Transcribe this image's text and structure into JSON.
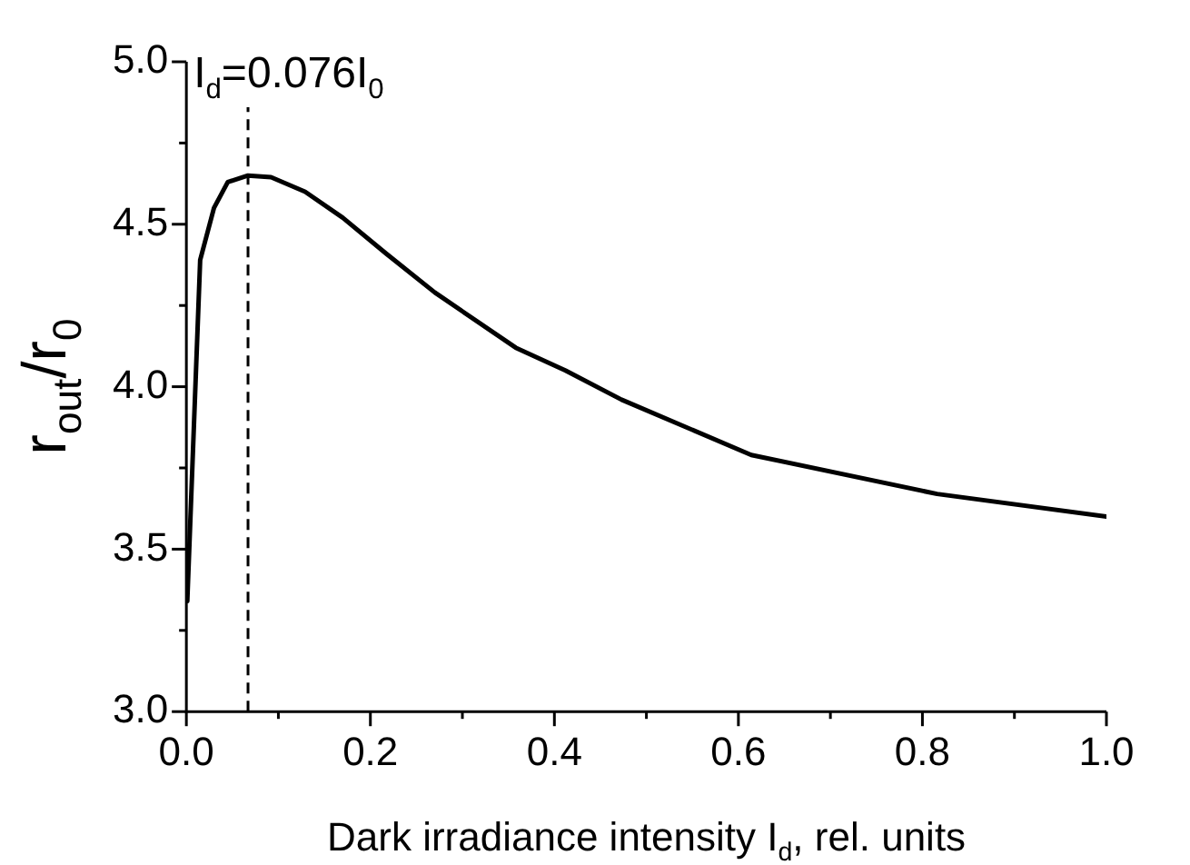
{
  "chart_data": {
    "type": "line",
    "xlabel": "Dark irradiance intensity I$_{d}$, rel. units",
    "ylabel": "r$_{out}$/r$_{0}$",
    "series": [
      {
        "color": "#000000",
        "x": [
          0.001,
          0.015,
          0.03,
          0.045,
          0.067,
          0.092,
          0.129,
          0.17,
          0.217,
          0.27,
          0.358,
          0.412,
          0.473,
          0.614,
          0.816,
          1.0
        ],
        "values": [
          3.34,
          4.39,
          4.55,
          4.63,
          4.65,
          4.645,
          4.6,
          4.52,
          4.41,
          4.29,
          4.12,
          4.05,
          3.96,
          3.79,
          3.67,
          3.6
        ]
      }
    ],
    "xlim": [
      0,
      1
    ],
    "ylim": [
      3,
      5
    ],
    "xticks": [
      {
        "value": 0,
        "label": "0.0"
      },
      {
        "value": 0.1,
        "label": null
      },
      {
        "value": 0.2,
        "label": "0.2"
      },
      {
        "value": 0.3,
        "label": null
      },
      {
        "value": 0.4,
        "label": "0.4"
      },
      {
        "value": 0.5,
        "label": null
      },
      {
        "value": 0.6,
        "label": "0.6"
      },
      {
        "value": 0.7,
        "label": null
      },
      {
        "value": 0.8,
        "label": "0.8"
      },
      {
        "value": 0.9,
        "label": null
      },
      {
        "value": 1,
        "label": "1.0"
      }
    ],
    "yticks": [
      {
        "value": 3,
        "label": "3.0"
      },
      {
        "value": 3.25,
        "label": null
      },
      {
        "value": 3.5,
        "label": "3.5"
      },
      {
        "value": 3.75,
        "label": null
      },
      {
        "value": 4,
        "label": "4.0"
      },
      {
        "value": 4.25,
        "label": null
      },
      {
        "value": 4.5,
        "label": "4.5"
      },
      {
        "value": 4.75,
        "label": null
      },
      {
        "value": 5,
        "label": "5.0"
      }
    ],
    "ref_lines": [
      {
        "axis": "x",
        "value": 0.067,
        "label": "I$_{d}$=0.076I$_{0}$",
        "line_style": "dashed",
        "color": "#000000"
      }
    ],
    "grid": false,
    "legend": false,
    "marker": "none",
    "line_style": "solid"
  }
}
